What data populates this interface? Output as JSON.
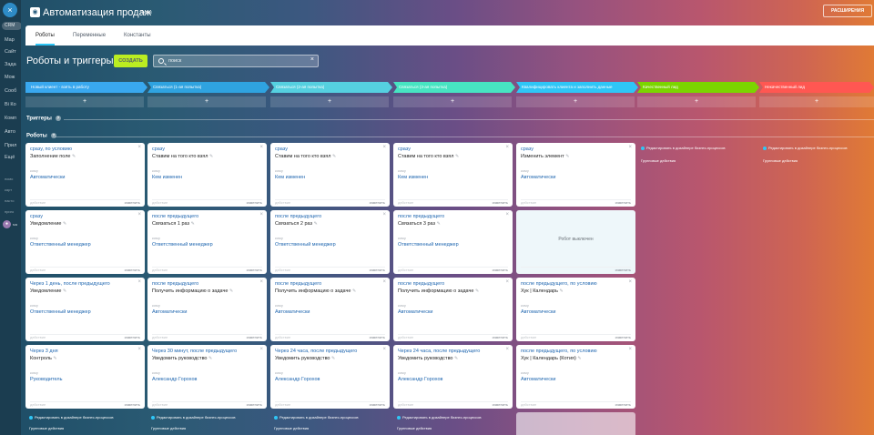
{
  "nav": {
    "items": [
      "Мар",
      "Сайт",
      "Зада",
      "Мож",
      "Сооб",
      "Bi Ко",
      "Комп",
      "Авто",
      "Прил",
      "Ещё"
    ],
    "crm": "CRM",
    "mini": [
      "помо",
      "карт",
      "насто",
      "приго"
    ],
    "user": "ма"
  },
  "header": {
    "title": "Автоматизация продаж",
    "subtitle": "Лиды",
    "extensions": "РАСШИРЕНИЯ"
  },
  "tabs": [
    "Роботы",
    "Переменные",
    "Константы"
  ],
  "toolbar": {
    "heading": "Роботы и триггеры",
    "create": "СОЗДАТЬ",
    "search_placeholder": "поиск"
  },
  "stages": [
    {
      "name": "Новый клиент - взять в работу",
      "color": "#39a8ef"
    },
    {
      "name": "Связаться (1-ая попытка)",
      "color": "#2fa3e0"
    },
    {
      "name": "Связаться (2-ая попытка)",
      "color": "#55d0e0"
    },
    {
      "name": "Связаться (3-ая попытка)",
      "color": "#47e4c2"
    },
    {
      "name": "Квалифицировать клиента и заполнить данные",
      "color": "#2fc6f6"
    },
    {
      "name": "Качественный лид",
      "color": "#7bd500"
    },
    {
      "name": "Некачественный лид",
      "color": "#ff5752"
    }
  ],
  "add_symbol": "+",
  "sections": {
    "triggers": "Триггеры",
    "robots": "Роботы",
    "help": "?"
  },
  "labels": {
    "for": "кому",
    "change": "изменить",
    "close": "×",
    "pencil": "✎",
    "status": "действие",
    "disabled": "Робот выключен"
  },
  "robots": [
    [
      {
        "condition": "сразу, по условию",
        "name": "Заполнение поле",
        "responsible": "Автоматически"
      },
      {
        "condition": "сразу",
        "name": "Уведомление",
        "responsible": "Ответственный менеджер"
      },
      {
        "condition": "Через 1 день, после предыдущего",
        "name": "Уведомление",
        "responsible": "Ответственный менеджер"
      },
      {
        "condition": "Через 3 дня",
        "name": "Контроль",
        "responsible": "Руководитель"
      }
    ],
    [
      {
        "condition": "сразу",
        "name": "Ставим на того кто взял",
        "responsible": "Кем изменен"
      },
      {
        "condition": "после предыдущего",
        "name": "Связаться 1 раз",
        "responsible": "Ответственный менеджер"
      },
      {
        "condition": "после предыдущего",
        "name": "Получить информацию о задаче",
        "responsible": "Автоматически"
      },
      {
        "condition": "Через 30 минут, после предыдущего",
        "name": "Уведомить руководство",
        "responsible": "Александр Горохов"
      }
    ],
    [
      {
        "condition": "сразу",
        "name": "Ставим на того кто взял",
        "responsible": "Кем изменен"
      },
      {
        "condition": "после предыдущего",
        "name": "Связаться 2 раз",
        "responsible": "Ответственный менеджер"
      },
      {
        "condition": "после предыдущего",
        "name": "Получить информацию о задаче",
        "responsible": "Автоматически"
      },
      {
        "condition": "Через 24 часа, после предыдущего",
        "name": "Уведомить руководство",
        "responsible": "Александр Горохов"
      }
    ],
    [
      {
        "condition": "сразу",
        "name": "Ставим на того кто взял",
        "responsible": "Кем изменен"
      },
      {
        "condition": "после предыдущего",
        "name": "Связаться 3 раз",
        "responsible": "Ответственный менеджер"
      },
      {
        "condition": "после предыдущего",
        "name": "Получить информацию о задаче",
        "responsible": "Автоматически"
      },
      {
        "condition": "Через 24 часа, после предыдущего",
        "name": "Уведомить руководство",
        "responsible": "Александр Горохов"
      }
    ],
    [
      {
        "condition": "сразу",
        "name": "Изменить элемент",
        "responsible": "Автоматически"
      },
      {
        "disabled": true
      },
      {
        "condition": "после предыдущего, по условию",
        "name": "Хук | Календарь",
        "responsible": "Автоматически"
      },
      {
        "condition": "после предыдущего, по условию",
        "name": "Хук | Календарь (Котия)",
        "responsible": "Автоматически"
      }
    ]
  ],
  "edit_link": "Редактировать в дизайнере бизнес-процессов",
  "group_actions": "Групповые действия"
}
